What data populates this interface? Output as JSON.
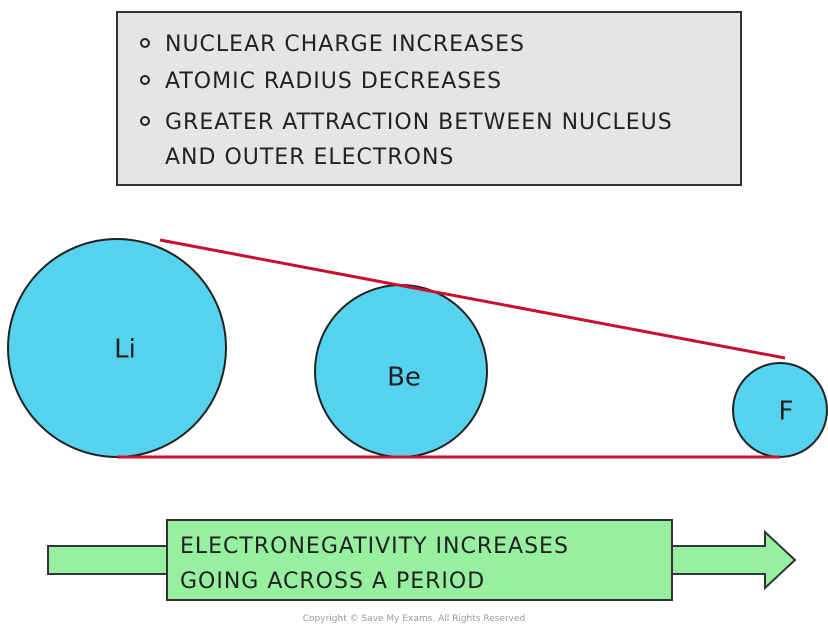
{
  "info_box": {
    "bullets": [
      "NUCLEAR CHARGE INCREASES",
      "ATOMIC RADIUS DECREASES",
      "GREATER ATTRACTION BETWEEN NUCLEUS"
    ],
    "continuation": "AND OUTER ELECTRONS"
  },
  "nodes": [
    {
      "label": "Li"
    },
    {
      "label": "Be"
    },
    {
      "label": "F"
    }
  ],
  "banner": {
    "lines": [
      "ELECTRONEGATIVITY INCREASES",
      "GOING ACROSS A PERIOD"
    ]
  },
  "copyright": "Copyright © Save My Exams. All Rights Reserved"
}
